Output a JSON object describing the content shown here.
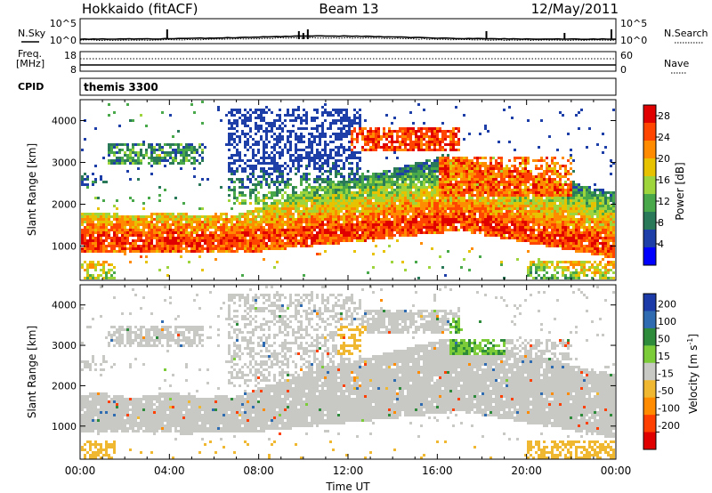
{
  "header": {
    "station": "Hokkaido (fitACF)",
    "beam": "Beam 13",
    "date": "12/May/2011"
  },
  "top_panels": {
    "nsky_label": "N.Sky",
    "nsearch_label": "N.Search",
    "noise_ticks": [
      "10^5",
      "10^0"
    ],
    "freq_label": "Freq.",
    "freq_unit": "[MHz]",
    "freq_ticks": [
      "18",
      "8"
    ],
    "nave_label": "Nave",
    "nave_ticks": [
      "60",
      "0"
    ],
    "cpid_label": "CPID",
    "cpid_value": "themis 3300"
  },
  "chart_data": [
    {
      "type": "heatmap",
      "panel": "power",
      "ylabel": "Slant Range [km]",
      "ylim": [
        180,
        4500
      ],
      "yticks": [
        1000,
        2000,
        3000,
        4000
      ],
      "xlim_hours": [
        0,
        24
      ],
      "colorbar_label": "Power [dB]",
      "colorbar_ticks": [
        4,
        8,
        12,
        16,
        20,
        24,
        28
      ],
      "colorbar_range": [
        0,
        30
      ],
      "colors": [
        "#0000ff",
        "#1e3fa8",
        "#2a7a5a",
        "#48a84a",
        "#9ed43c",
        "#e6c200",
        "#ff8c00",
        "#ff4500",
        "#e10000"
      ]
    },
    {
      "type": "heatmap",
      "panel": "velocity",
      "ylabel": "Slant Range [km]",
      "ylim": [
        180,
        4500
      ],
      "yticks": [
        1000,
        2000,
        3000,
        4000
      ],
      "xlim_hours": [
        0,
        24
      ],
      "colorbar_label_main": "Velocity [m s",
      "colorbar_label_sup": "-1",
      "colorbar_label_end": "]",
      "colorbar_ticks": [
        "200",
        "100",
        "50",
        "15",
        "-15",
        "-50",
        "-100",
        "-200"
      ],
      "colors": [
        "#1c3aa8",
        "#2f6bb0",
        "#2e8b3c",
        "#7ccc3a",
        "#c8c8c4",
        "#f0b830",
        "#ff8c00",
        "#ff4000",
        "#e00000"
      ]
    }
  ],
  "x_axis": {
    "ticks": [
      "00:00",
      "04:00",
      "08:00",
      "12:00",
      "16:00",
      "20:00",
      "00:00"
    ],
    "label": "Time UT"
  }
}
